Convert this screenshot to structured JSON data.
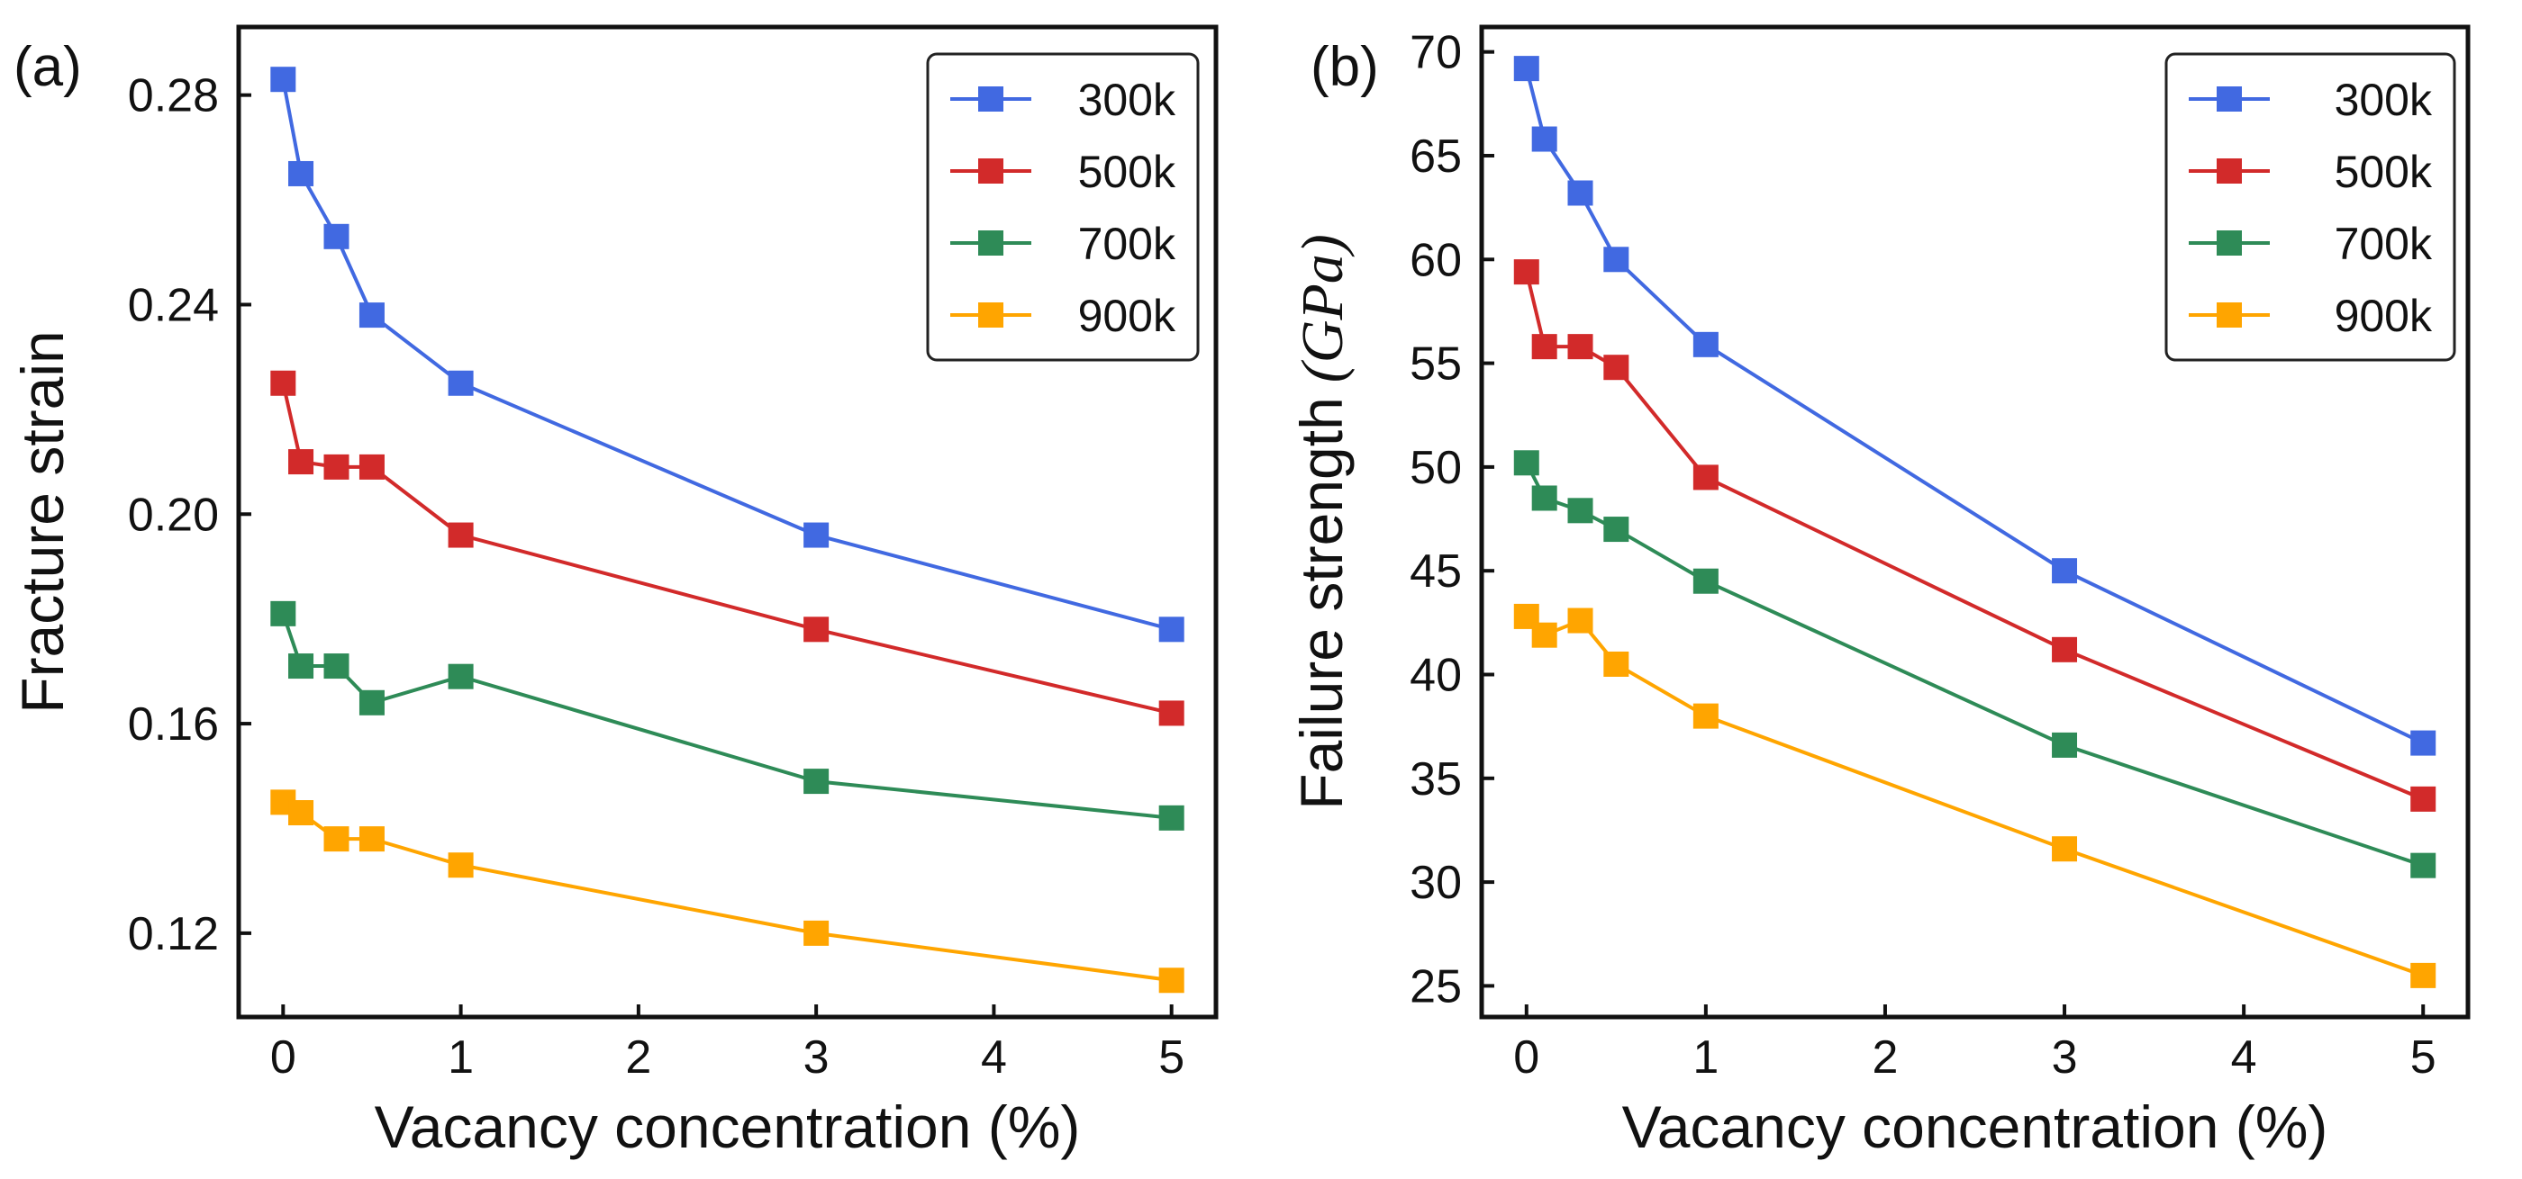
{
  "chart_data": [
    {
      "type": "line",
      "panel_label": "(a)",
      "title": "",
      "xlabel": "Vacancy concentration (%)",
      "ylabel": "Fracture strain",
      "ylabel_unit": "",
      "x_display": [
        0,
        0.1,
        0.3,
        0.5,
        1,
        3,
        5
      ],
      "x_ticks": [
        0,
        1,
        2,
        3,
        4,
        5
      ],
      "x_tick_labels": [
        "0",
        "1",
        "2",
        "3",
        "4",
        "5"
      ],
      "xlim": [
        -0.25,
        5.25
      ],
      "y_ticks": [
        0.12,
        0.16,
        0.2,
        0.24,
        0.28
      ],
      "y_tick_labels": [
        "0.12",
        "0.16",
        "0.20",
        "0.24",
        "0.28"
      ],
      "ylim": [
        0.104,
        0.293
      ],
      "legend_position": "top-right",
      "series": [
        {
          "name": "300k",
          "color": "#4169e1",
          "values": [
            0.283,
            0.265,
            0.253,
            0.238,
            0.225,
            0.196,
            0.178
          ]
        },
        {
          "name": "500k",
          "color": "#d22a2a",
          "values": [
            0.225,
            0.21,
            0.209,
            0.209,
            0.196,
            0.178,
            0.162
          ]
        },
        {
          "name": "700k",
          "color": "#2e8b57",
          "values": [
            0.181,
            0.171,
            0.171,
            0.164,
            0.169,
            0.149,
            0.142
          ]
        },
        {
          "name": "900k",
          "color": "#ffa500",
          "values": [
            0.145,
            0.143,
            0.138,
            0.138,
            0.133,
            0.12,
            0.111
          ]
        }
      ]
    },
    {
      "type": "line",
      "panel_label": "(b)",
      "title": "",
      "xlabel": "Vacancy concentration (%)",
      "ylabel": "Failure strength",
      "ylabel_unit": "(GPa)",
      "x_display": [
        0,
        0.1,
        0.3,
        0.5,
        1,
        3,
        5
      ],
      "x_ticks": [
        0,
        1,
        2,
        3,
        4,
        5
      ],
      "x_tick_labels": [
        "0",
        "1",
        "2",
        "3",
        "4",
        "5"
      ],
      "xlim": [
        -0.25,
        5.25
      ],
      "y_ticks": [
        25,
        30,
        35,
        40,
        45,
        50,
        55,
        60,
        65,
        70
      ],
      "y_tick_labels": [
        "25",
        "30",
        "35",
        "40",
        "45",
        "50",
        "55",
        "60",
        "65",
        "70"
      ],
      "ylim": [
        23.5,
        71.2
      ],
      "legend_position": "top-right",
      "series": [
        {
          "name": "300k",
          "color": "#4169e1",
          "values": [
            69.2,
            65.8,
            63.2,
            60.0,
            55.9,
            45.0,
            36.7
          ]
        },
        {
          "name": "500k",
          "color": "#d22a2a",
          "values": [
            59.4,
            55.8,
            55.8,
            54.8,
            49.5,
            41.2,
            34.0
          ]
        },
        {
          "name": "700k",
          "color": "#2e8b57",
          "values": [
            50.2,
            48.5,
            47.9,
            47.0,
            44.5,
            36.6,
            30.8
          ]
        },
        {
          "name": "900k",
          "color": "#ffa500",
          "values": [
            42.8,
            41.9,
            42.6,
            40.5,
            38.0,
            31.6,
            25.5
          ]
        }
      ]
    }
  ]
}
